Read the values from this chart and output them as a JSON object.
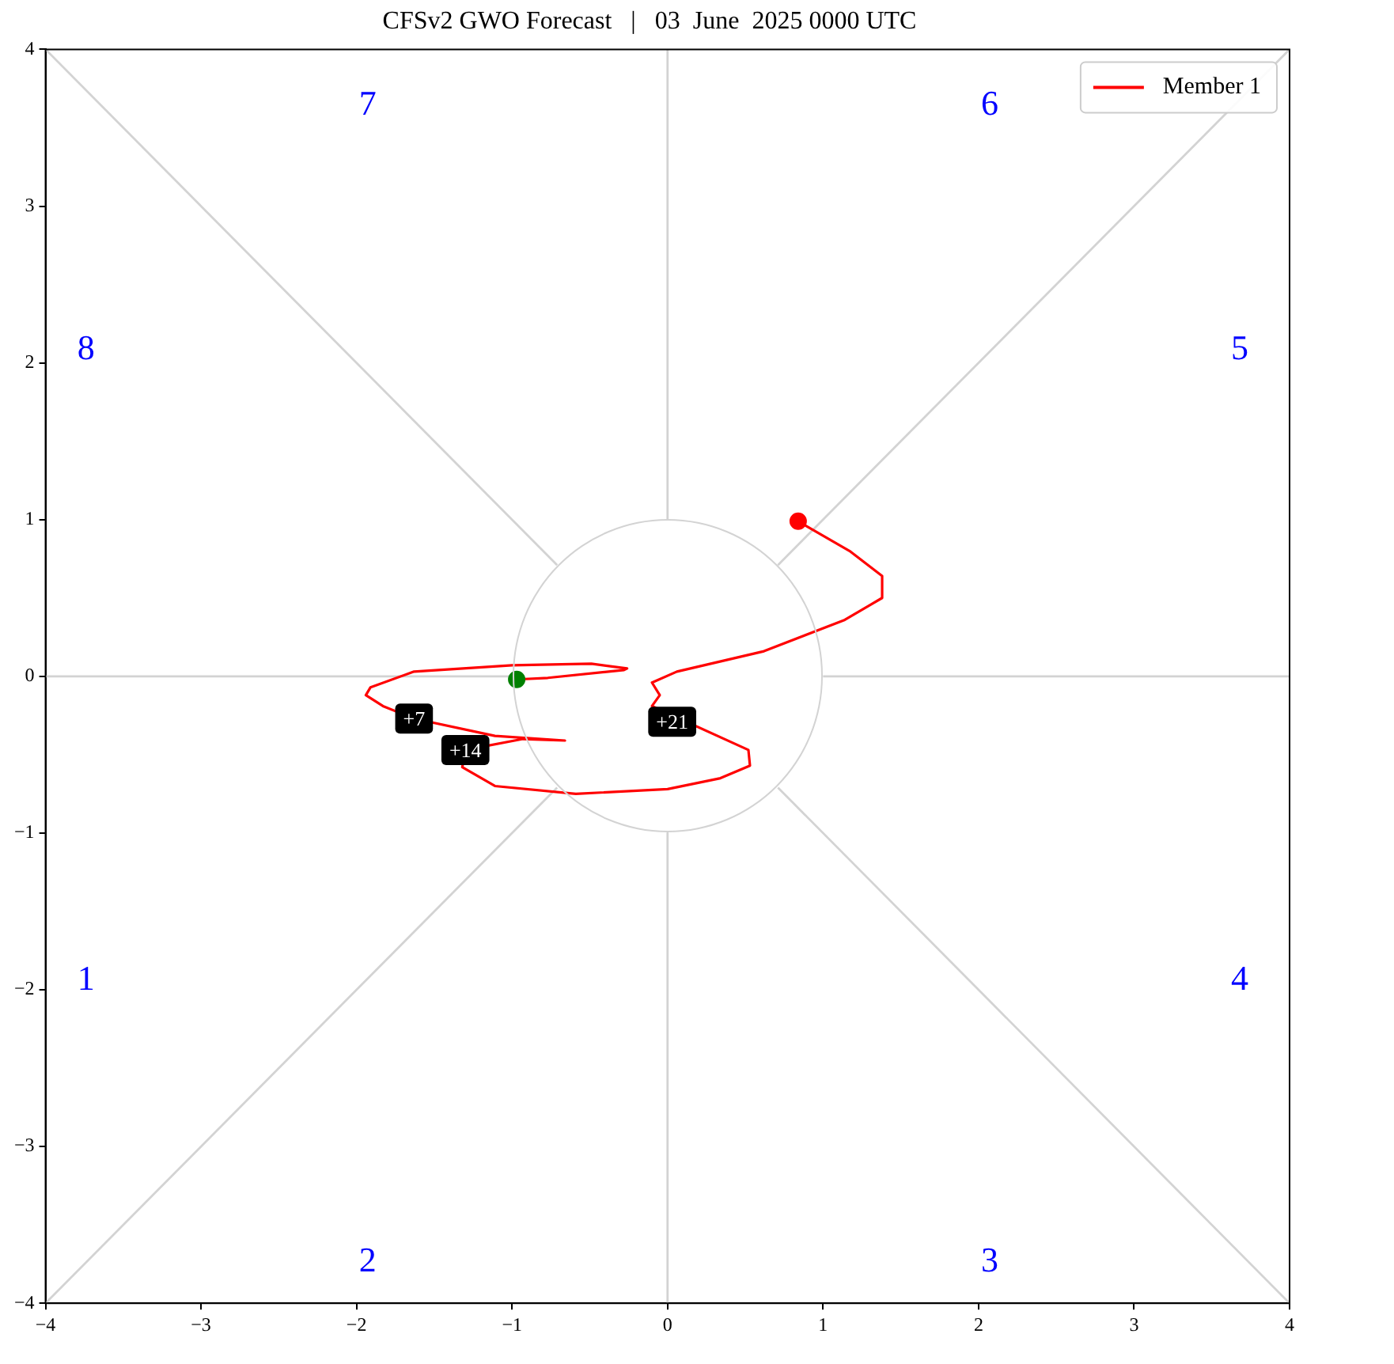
{
  "chart_data": {
    "type": "line",
    "title": "CFSv2 GWO Forecast   |   03  June  2025 0000 UTC",
    "xlim": [
      -4,
      4
    ],
    "ylim": [
      -4,
      4
    ],
    "xticks": [
      {
        "value": -4,
        "label": "−4"
      },
      {
        "value": -3,
        "label": "−3"
      },
      {
        "value": -2,
        "label": "−2"
      },
      {
        "value": -1,
        "label": "−1"
      },
      0,
      1,
      2,
      3,
      4
    ],
    "yticks": [
      {
        "value": -4,
        "label": "−4"
      },
      {
        "value": -3,
        "label": "−3"
      },
      {
        "value": -2,
        "label": "−2"
      },
      {
        "value": -1,
        "label": "−1"
      },
      0,
      1,
      2,
      3,
      4
    ],
    "grid": false,
    "legend": "top right",
    "line_style": "solid",
    "marker": "none",
    "series": [
      {
        "color": "#d3d3d3",
        "x": [
          0,
          0
        ],
        "values": [
          1,
          4
        ]
      },
      {
        "color": "#d3d3d3",
        "x": [
          0,
          0
        ],
        "values": [
          -1,
          -4
        ]
      },
      {
        "color": "#d3d3d3",
        "x": [
          1,
          4
        ],
        "values": [
          0,
          0
        ]
      },
      {
        "color": "#d3d3d3",
        "x": [
          -1,
          -4
        ],
        "values": [
          0,
          0
        ]
      },
      {
        "color": "#d3d3d3",
        "x": [
          0.71,
          4
        ],
        "values": [
          0.71,
          4
        ]
      },
      {
        "color": "#d3d3d3",
        "x": [
          -0.71,
          -4
        ],
        "values": [
          0.71,
          4
        ]
      },
      {
        "color": "#d3d3d3",
        "x": [
          0.71,
          4
        ],
        "values": [
          -0.71,
          -4
        ]
      },
      {
        "color": "#d3d3d3",
        "x": [
          -0.71,
          -4
        ],
        "values": [
          -0.71,
          -4
        ]
      },
      {
        "name": "Member 1",
        "color": "#ff0000",
        "x": [
          -0.97,
          -0.77,
          -0.28,
          -0.26,
          -0.49,
          -1.0,
          -1.63,
          -1.91,
          -1.94,
          -1.83,
          -1.63,
          -1.11,
          -0.66,
          -0.93,
          -1.3,
          -1.32,
          -1.11,
          -0.59,
          0.0,
          0.34,
          0.53,
          0.52,
          -0.1,
          -0.05,
          -0.1,
          0.06,
          0.62,
          1.14,
          1.38,
          1.38,
          1.17,
          0.89,
          0.84
        ],
        "values": [
          -0.02,
          -0.01,
          0.04,
          0.05,
          0.08,
          0.07,
          0.03,
          -0.07,
          -0.12,
          -0.19,
          -0.27,
          -0.38,
          -0.41,
          -0.4,
          -0.47,
          -0.58,
          -0.7,
          -0.75,
          -0.72,
          -0.65,
          -0.57,
          -0.47,
          -0.19,
          -0.12,
          -0.04,
          0.03,
          0.16,
          0.36,
          0.5,
          0.64,
          0.8,
          0.96,
          0.99
        ]
      },
      {
        "type": "scatter",
        "color": "#008000",
        "marker": "circle",
        "x": [
          -0.97
        ],
        "values": [
          -0.02
        ]
      },
      {
        "type": "scatter",
        "color": "#ff0000",
        "marker": "circle",
        "x": [
          0.84
        ],
        "values": [
          0.99
        ]
      }
    ],
    "annotations": [
      "1",
      "2",
      "3",
      "4",
      "5",
      "6",
      "7",
      "8",
      {
        "text": "+7",
        "x": -1.63,
        "y": -0.27
      },
      {
        "text": "+14",
        "x": -1.3,
        "y": -0.47
      },
      {
        "text": "+21",
        "x": 0.03,
        "y": -0.29
      }
    ]
  }
}
